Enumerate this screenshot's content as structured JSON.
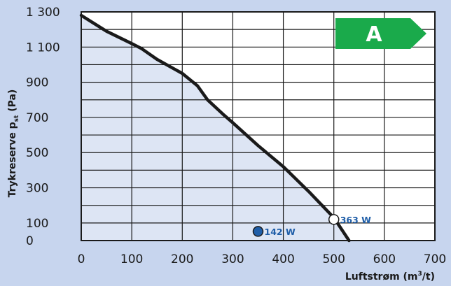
{
  "chart_data": {
    "type": "line",
    "x_label_text": "Luftstrøm (m",
    "x_label_sup": "3",
    "x_label_end": "/t)",
    "y_label_text": "Trykreserve p",
    "y_label_sub": "st",
    "y_label_end": " (Pa)",
    "xlim": [
      0,
      700
    ],
    "ylim": [
      0,
      1300
    ],
    "x_ticks": [
      0,
      100,
      200,
      300,
      400,
      500,
      600,
      700
    ],
    "x_tick_labels": [
      "0",
      "100",
      "200",
      "300",
      "400",
      "500",
      "600",
      "700"
    ],
    "y_ticks": [
      0,
      100,
      300,
      500,
      700,
      900,
      1100,
      1300
    ],
    "y_tick_labels": [
      "0",
      "100",
      "300",
      "500",
      "700",
      "900",
      "1 100",
      "1 300"
    ],
    "grid": true,
    "series": [
      {
        "x": [
          0,
          50,
          100,
          120,
          150,
          200,
          230,
          250,
          280,
          300,
          350,
          400,
          450,
          500,
          530
        ],
        "y": [
          1280,
          1190,
          1120,
          1090,
          1030,
          950,
          880,
          800,
          720,
          670,
          540,
          420,
          280,
          130,
          0
        ]
      }
    ],
    "points": [
      {
        "x": 350,
        "y": 52,
        "label": "142 W",
        "style": "filled",
        "color": "#1f5ea8"
      },
      {
        "x": 500,
        "y": 120,
        "label": "363 W",
        "style": "open",
        "color": "#ffffff"
      }
    ],
    "badge": {
      "text": "A",
      "color": "#1aaa4b"
    },
    "colors": {
      "background": "#c7d5ee",
      "plot_bg": "#ffffff",
      "fill_under": "#dde5f4",
      "line": "#1a1a1a",
      "grid": "#1a1a1a"
    }
  }
}
